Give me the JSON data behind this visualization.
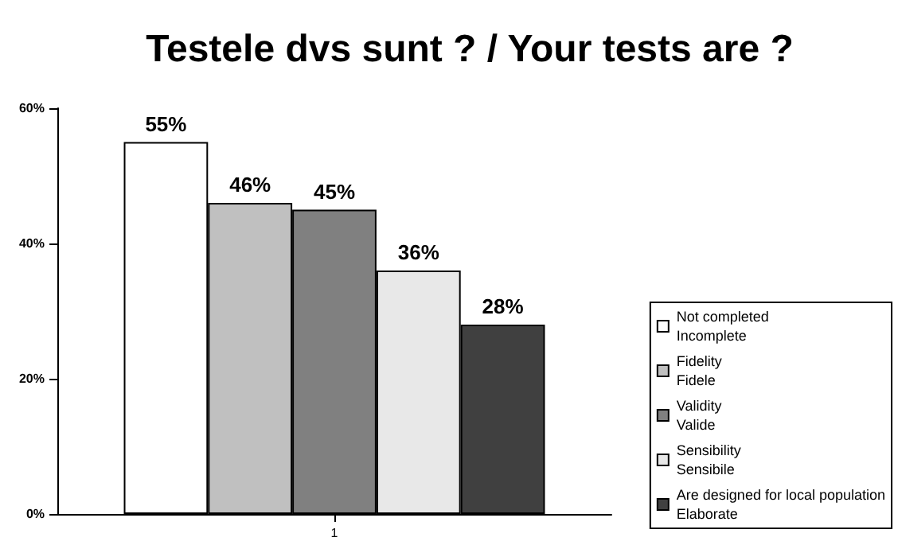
{
  "chart_data": {
    "type": "bar",
    "title": "Testele dvs sunt ? / Your tests are ?",
    "categories": [
      "1"
    ],
    "series": [
      {
        "name": "Not completed\nIncomplete",
        "color": "#ffffff",
        "values": [
          55
        ],
        "value_labels": [
          "55%"
        ]
      },
      {
        "name": "Fidelity\nFidele",
        "color": "#c0c0c0",
        "values": [
          46
        ],
        "value_labels": [
          "46%"
        ]
      },
      {
        "name": "Validity\nValide",
        "color": "#808080",
        "values": [
          45
        ],
        "value_labels": [
          "45%"
        ]
      },
      {
        "name": "Sensibility\nSensibile",
        "color": "#e8e8e8",
        "values": [
          36
        ],
        "value_labels": [
          "36%"
        ]
      },
      {
        "name": "Are designed for local population\nElaborate",
        "color": "#404040",
        "values": [
          28
        ],
        "value_labels": [
          "28%"
        ]
      }
    ],
    "ylim": [
      0,
      60
    ],
    "yticks": [
      {
        "value": 0,
        "label": "0%"
      },
      {
        "value": 20,
        "label": "20%"
      },
      {
        "value": 40,
        "label": "40%"
      },
      {
        "value": 60,
        "label": "60%"
      }
    ],
    "grid": false,
    "legend": "right"
  }
}
